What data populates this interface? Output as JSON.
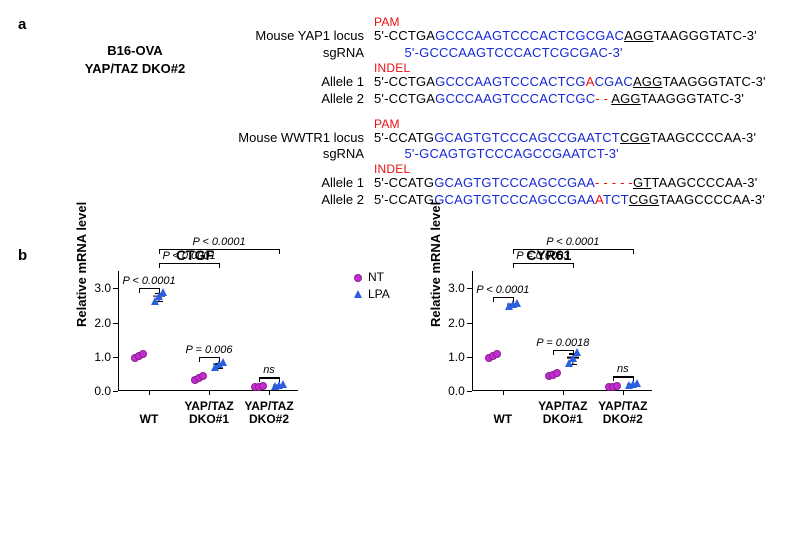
{
  "panel_a": {
    "label": "a",
    "sample_line1": "B16-OVA",
    "sample_line2": "YAP/TAZ  DKO#2",
    "blocks": [
      {
        "locus_label": "Mouse YAP1 locus",
        "overlabel": "PAM",
        "overlabel_indent": "                       ",
        "target_seq": [
          {
            "t": "5'-CCTGA",
            "c": "blk"
          },
          {
            "t": "GCCCAAGTCCCACTCGCGAC",
            "c": "blu"
          },
          {
            "t": "AGG",
            "c": "blk und"
          },
          {
            "t": "TAAGGGTATC-3'",
            "c": "blk"
          }
        ],
        "sg_label": "sgRNA",
        "sg_seq": [
          {
            "t": "        ",
            "c": "blk"
          },
          {
            "t": "5'-GCCCAAGTCCCACTCGCGAC-3'",
            "c": "blu"
          }
        ],
        "indel_label": "INDEL",
        "indel_indent": "                      ",
        "alleles": [
          {
            "label": "Allele 1",
            "seq": [
              {
                "t": "5'-CCTGA",
                "c": "blk"
              },
              {
                "t": "GCCCAAGTCCCACTCG",
                "c": "blu"
              },
              {
                "t": "A",
                "c": "red"
              },
              {
                "t": "CGAC",
                "c": "blu"
              },
              {
                "t": "AGG",
                "c": "blk und"
              },
              {
                "t": "TAAGGGTATC-3'",
                "c": "blk"
              }
            ]
          },
          {
            "label": "Allele 2",
            "seq": [
              {
                "t": "5'-CCTGA",
                "c": "blk"
              },
              {
                "t": "GCCCAAGTCCCACTCGC",
                "c": "blu"
              },
              {
                "t": "- - ",
                "c": "red"
              },
              {
                "t": "AGG",
                "c": "blk und"
              },
              {
                "t": "TAAGGGTATC-3'",
                "c": "blk"
              }
            ]
          }
        ]
      },
      {
        "locus_label": "Mouse WWTR1 locus",
        "overlabel": "PAM",
        "overlabel_indent": "                       ",
        "target_seq": [
          {
            "t": "5'-CCATG",
            "c": "blk"
          },
          {
            "t": "GCAGTGTCCCAGCCGAATCT",
            "c": "blu"
          },
          {
            "t": "CGG",
            "c": "blk und"
          },
          {
            "t": "TAAGCCCCAA-3'",
            "c": "blk"
          }
        ],
        "sg_label": "sgRNA",
        "sg_seq": [
          {
            "t": "        ",
            "c": "blk"
          },
          {
            "t": "5'-GCAGTGTCCCAGCCGAATCT-3'",
            "c": "blu"
          }
        ],
        "indel_label": "INDEL",
        "indel_indent": "                     ",
        "alleles": [
          {
            "label": "Allele 1",
            "seq": [
              {
                "t": "5'-CCATG",
                "c": "blk"
              },
              {
                "t": "GCAGTGTCCCAGCCGAA",
                "c": "blu"
              },
              {
                "t": "- - - - -",
                "c": "red"
              },
              {
                "t": "GT",
                "c": "blk und"
              },
              {
                "t": "TAAGCCCCAA-3'",
                "c": "blk"
              }
            ]
          },
          {
            "label": "Allele 2",
            "seq": [
              {
                "t": "5'-CCATG",
                "c": "blk"
              },
              {
                "t": "GCAGTGTCCCAGCCGAA",
                "c": "blu"
              },
              {
                "t": "A",
                "c": "red"
              },
              {
                "t": "TCT",
                "c": "blu"
              },
              {
                "t": "CGG",
                "c": "blk und"
              },
              {
                "t": "TAAGCCCCAA-3'",
                "c": "blk"
              }
            ]
          }
        ]
      }
    ]
  },
  "panel_b": {
    "label": "b",
    "ylab": "Relative mRNA level",
    "ymax": 3.5,
    "yticks": [
      0,
      1.0,
      2.0,
      3.0
    ],
    "groups": [
      "WT",
      "YAP/TAZ\nDKO#1",
      "YAP/TAZ\nDKO#2"
    ],
    "legend": {
      "nt": "NT",
      "lpa": "LPA"
    },
    "charts": [
      {
        "title": "CTGF",
        "data": {
          "NT": [
            {
              "mean": 1.0,
              "pts": [
                0.95,
                1.0,
                1.05
              ]
            },
            {
              "mean": 0.35,
              "pts": [
                0.3,
                0.35,
                0.4
              ]
            },
            {
              "mean": 0.1,
              "pts": [
                0.08,
                0.1,
                0.12
              ]
            }
          ],
          "LPA": [
            {
              "mean": 2.75,
              "se": 0.12,
              "pts": [
                2.6,
                2.75,
                2.85
              ]
            },
            {
              "mean": 0.75,
              "se": 0.06,
              "pts": [
                0.68,
                0.75,
                0.82
              ]
            },
            {
              "mean": 0.15,
              "pts": [
                0.12,
                0.15,
                0.18
              ]
            }
          ]
        },
        "sig": {
          "wt": "P < 0.0001",
          "g1": "P = 0.006",
          "g2": "ns",
          "top1": "P < 0.0001",
          "top2": "P < 0.0001"
        }
      },
      {
        "title": "CYR61",
        "data": {
          "NT": [
            {
              "mean": 1.0,
              "pts": [
                0.95,
                1.0,
                1.05
              ]
            },
            {
              "mean": 0.45,
              "pts": [
                0.4,
                0.45,
                0.5
              ]
            },
            {
              "mean": 0.1,
              "pts": [
                0.08,
                0.1,
                0.12
              ]
            }
          ],
          "LPA": [
            {
              "mean": 2.5,
              "pts": [
                2.45,
                2.5,
                2.55
              ]
            },
            {
              "mean": 0.95,
              "se": 0.15,
              "pts": [
                0.78,
                0.95,
                1.1
              ]
            },
            {
              "mean": 0.18,
              "pts": [
                0.14,
                0.18,
                0.22
              ]
            }
          ]
        },
        "sig": {
          "wt": "P < 0.0001",
          "g1": "P = 0.0018",
          "g2": "ns",
          "top1": "P = 0.0003",
          "top2": "P < 0.0001"
        }
      }
    ]
  }
}
